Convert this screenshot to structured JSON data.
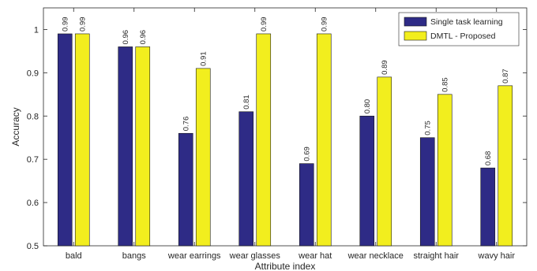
{
  "chart_data": {
    "type": "bar",
    "xlabel": "Attribute index",
    "ylabel": "Accuracy",
    "ylim": [
      0.5,
      1.05
    ],
    "yticks": [
      0.5,
      0.6,
      0.7,
      0.8,
      0.9,
      1
    ],
    "ytick_labels": [
      "0.5",
      "0.6",
      "0.7",
      "0.8",
      "0.9",
      "1"
    ],
    "categories": [
      "bald",
      "bangs",
      "wear earrings",
      "wear glasses",
      "wear hat",
      "wear necklace",
      "straight hair",
      "wavy hair"
    ],
    "series": [
      {
        "name": "Single task learning",
        "color": "#2e2b86",
        "values": [
          0.99,
          0.96,
          0.76,
          0.81,
          0.69,
          0.8,
          0.75,
          0.68
        ],
        "labels": [
          "0.99",
          "0.96",
          "0.76",
          "0.81",
          "0.69",
          "0.80",
          "0.75",
          "0.68"
        ]
      },
      {
        "name": "DMTL - Proposed",
        "color": "#f2ee1e",
        "values": [
          0.99,
          0.96,
          0.91,
          0.99,
          0.99,
          0.89,
          0.85,
          0.87
        ],
        "labels": [
          "0.99",
          "0.96",
          "0.91",
          "0.99",
          "0.99",
          "0.89",
          "0.85",
          "0.87"
        ]
      }
    ],
    "legend_position": "top-right",
    "grid": false
  }
}
